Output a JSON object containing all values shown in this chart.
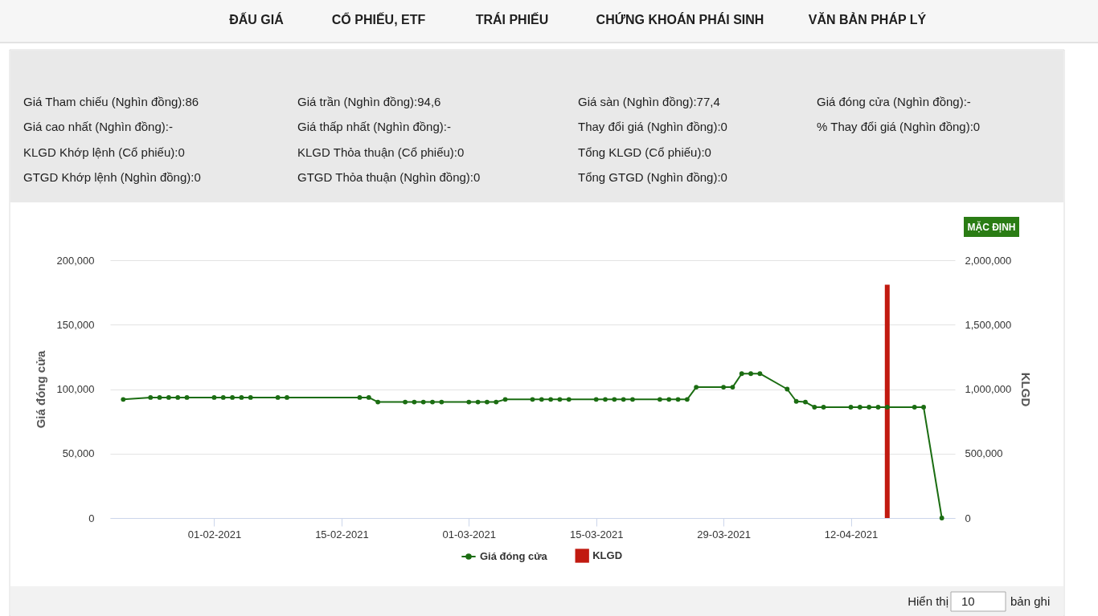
{
  "chart_data": [
    {
      "type": "other",
      "annotations": [
        "ĐẤU GIÁ",
        "CỔ PHIẾU, ETF",
        "TRÁI PHIẾU",
        "CHỨNG KHOÁN PHÁI SINH",
        "VĂN BẢN PHÁP LÝ"
      ]
    },
    {
      "type": "other",
      "annotations": [
        "Giá Tham chiếu (Nghìn đồng):86",
        "Giá trần (Nghìn đồng):94,6",
        "Giá sàn (Nghìn đồng):77,4",
        "Giá đóng cửa (Nghìn đồng):-",
        "Giá cao nhất (Nghìn đồng):-",
        "Giá thấp nhất (Nghìn đồng):-",
        "Thay đổi giá (Nghìn đồng):0",
        "% Thay đổi giá (Nghìn đồng):0",
        "KLGD Khớp lệnh (Cổ phiếu):0",
        "KLGD Thỏa thuận (Cổ phiếu):0",
        "Tổng KLGD (Cổ phiếu):0",
        "GTGD Khớp lệnh (Nghìn đồng):0",
        "GTGD Thỏa thuận (Nghìn đồng):0",
        "Tổng GTGD (Nghìn đồng):0"
      ]
    },
    {
      "type": "line",
      "ylabel": "Giá đóng cửa",
      "y2label": "KLGD",
      "annotations": [
        "MẶC ĐỊNH"
      ],
      "xlim": [
        "2021-01-21",
        "2021-04-23"
      ],
      "xticks": [
        {
          "value": "2021-02-01",
          "label": "01-02-2021"
        },
        {
          "value": "2021-02-15",
          "label": "15-02-2021"
        },
        {
          "value": "2021-03-01",
          "label": "01-03-2021"
        },
        {
          "value": "2021-03-15",
          "label": "15-03-2021"
        },
        {
          "value": "2021-03-29",
          "label": "29-03-2021"
        },
        {
          "value": "2021-04-12",
          "label": "12-04-2021"
        }
      ],
      "ylim": [
        0,
        200000
      ],
      "yticks": [
        0,
        {
          "value": 50000,
          "label": "50,000"
        },
        {
          "value": 100000,
          "label": "100,000"
        },
        {
          "value": 150000,
          "label": "150,000"
        },
        {
          "value": 200000,
          "label": "200,000"
        }
      ],
      "y2lim": [
        0,
        2000000
      ],
      "y2ticks": [
        0,
        {
          "value": 500000,
          "label": "500,000"
        },
        {
          "value": 1000000,
          "label": "1,000,000"
        },
        {
          "value": 1500000,
          "label": "1,500,000"
        },
        {
          "value": 2000000,
          "label": "2,000,000"
        }
      ],
      "grid": "y",
      "legend": "bottom",
      "marker": "circle",
      "series": [
        {
          "name": "Giá đóng cửa",
          "type": "line",
          "color": "#1b6d12",
          "x": [
            "2021-01-22",
            "2021-01-25",
            "2021-01-26",
            "2021-01-27",
            "2021-01-28",
            "2021-01-29",
            "2021-02-01",
            "2021-02-02",
            "2021-02-03",
            "2021-02-04",
            "2021-02-05",
            "2021-02-08",
            "2021-02-09",
            "2021-02-17",
            "2021-02-18",
            "2021-02-19",
            "2021-02-22",
            "2021-02-23",
            "2021-02-24",
            "2021-02-25",
            "2021-02-26",
            "2021-03-01",
            "2021-03-02",
            "2021-03-03",
            "2021-03-04",
            "2021-03-05",
            "2021-03-08",
            "2021-03-09",
            "2021-03-10",
            "2021-03-11",
            "2021-03-12",
            "2021-03-15",
            "2021-03-16",
            "2021-03-17",
            "2021-03-18",
            "2021-03-19",
            "2021-03-22",
            "2021-03-23",
            "2021-03-24",
            "2021-03-25",
            "2021-03-26",
            "2021-03-29",
            "2021-03-30",
            "2021-03-31",
            "2021-04-01",
            "2021-04-02",
            "2021-04-05",
            "2021-04-06",
            "2021-04-07",
            "2021-04-08",
            "2021-04-09",
            "2021-04-12",
            "2021-04-13",
            "2021-04-14",
            "2021-04-15",
            "2021-04-16",
            "2021-04-19",
            "2021-04-20",
            "2021-04-22"
          ],
          "values": [
            92000,
            93500,
            93500,
            93500,
            93500,
            93500,
            93500,
            93500,
            93500,
            93500,
            93500,
            93500,
            93500,
            93500,
            93500,
            90000,
            90000,
            90000,
            90000,
            90000,
            90000,
            90000,
            90000,
            90000,
            90000,
            92000,
            92000,
            92000,
            92000,
            92000,
            92000,
            92000,
            92000,
            92000,
            92000,
            92000,
            92000,
            92000,
            92000,
            92000,
            101500,
            101500,
            101500,
            112000,
            112000,
            112000,
            100000,
            90500,
            90000,
            86000,
            86000,
            86000,
            86000,
            86000,
            86000,
            86000,
            86000,
            86000,
            0
          ]
        },
        {
          "name": "KLGD",
          "type": "bar",
          "axis": "y2",
          "color": "#c11a10",
          "x": [
            "2021-04-16"
          ],
          "values": [
            1810000
          ]
        }
      ]
    },
    {
      "type": "other",
      "annotations": [
        "Hiển thị",
        "10",
        "bản ghi"
      ]
    }
  ]
}
